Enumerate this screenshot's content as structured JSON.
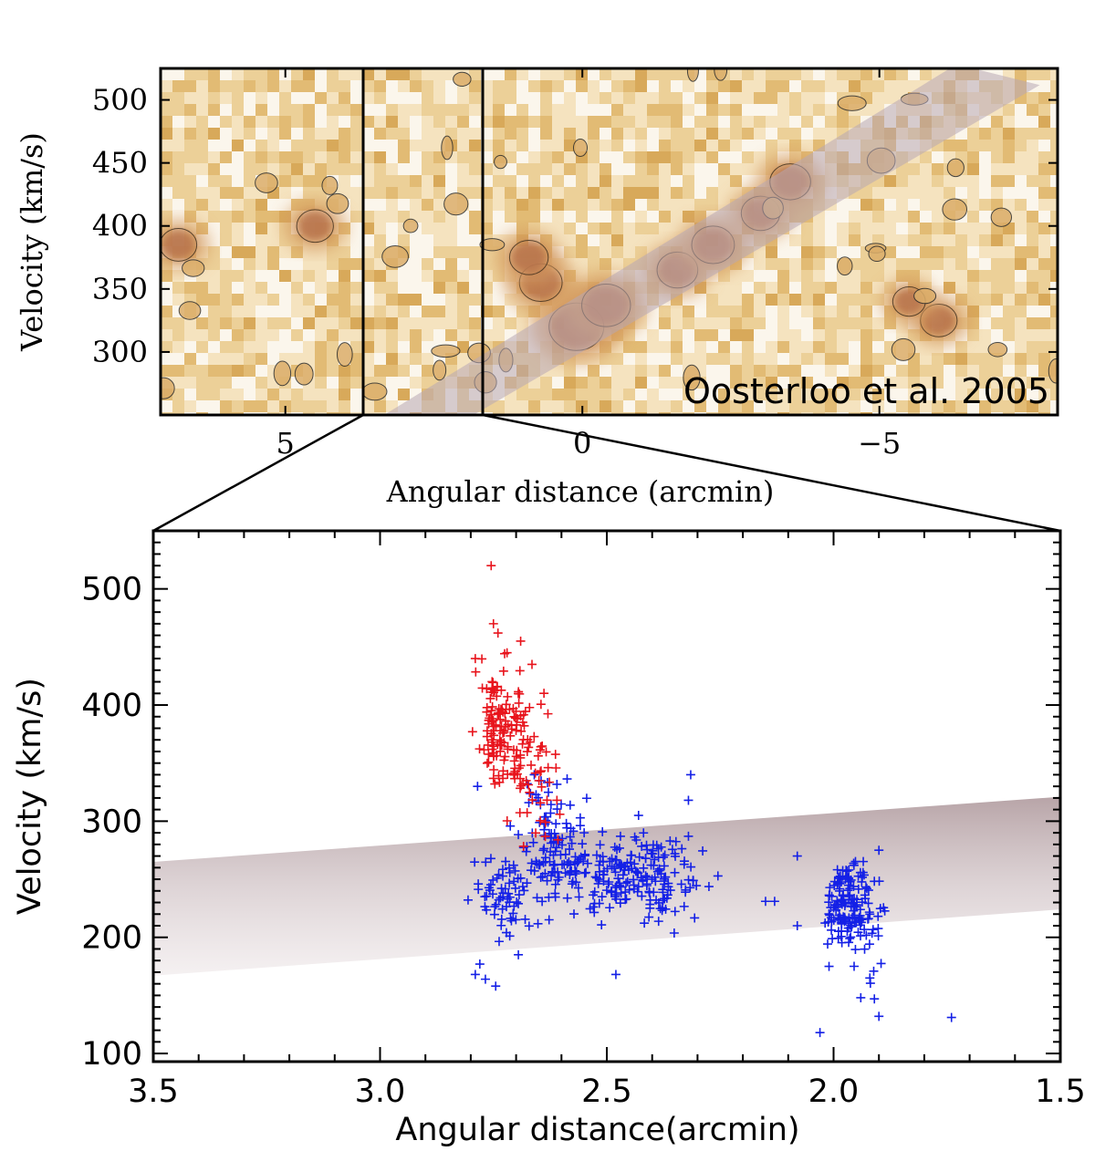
{
  "chart_data": [
    {
      "type": "heatmap",
      "panel": "top",
      "description_label": "Oosterloo et al. 2005",
      "xlabel": "Angular distance (arcmin)",
      "ylabel": "Velocity (km/s)",
      "xlim": [
        7.1,
        -8.0
      ],
      "ylim": [
        250,
        525
      ],
      "xticks": [
        {
          "v": 5,
          "label": "5"
        },
        {
          "v": 0,
          "label": "0"
        },
        {
          "v": -5,
          "label": "−5"
        }
      ],
      "yticks": [
        {
          "v": 500,
          "label": "500"
        },
        {
          "v": 450,
          "label": "450"
        },
        {
          "v": 400,
          "label": "400"
        },
        {
          "v": 350,
          "label": "350"
        },
        {
          "v": 300,
          "label": "300"
        }
      ],
      "zoom_window_x": [
        3.5,
        1.5
      ],
      "band": {
        "x_start": 3.5,
        "v_start": 245,
        "x_end": -7.0,
        "v_end": 520
      },
      "emission_peaks": [
        {
          "x": 0.1,
          "v": 320,
          "level": 1.0
        },
        {
          "x": -0.4,
          "v": 337,
          "level": 0.85
        },
        {
          "x": 0.7,
          "v": 355,
          "level": 0.7
        },
        {
          "x": 0.9,
          "v": 375,
          "level": 0.6
        },
        {
          "x": -1.6,
          "v": 365,
          "level": 0.65
        },
        {
          "x": -2.2,
          "v": 385,
          "level": 0.7
        },
        {
          "x": -3.0,
          "v": 410,
          "level": 0.6
        },
        {
          "x": -3.5,
          "v": 435,
          "level": 0.65
        },
        {
          "x": 6.8,
          "v": 385,
          "level": 0.55
        },
        {
          "x": 4.5,
          "v": 400,
          "level": 0.55
        },
        {
          "x": -6.0,
          "v": 325,
          "level": 0.55
        },
        {
          "x": -5.5,
          "v": 340,
          "level": 0.45
        }
      ]
    },
    {
      "type": "scatter",
      "panel": "bottom",
      "xlabel": "Angular distance(arcmin)",
      "ylabel": "Velocity (km/s)",
      "xlim": [
        3.5,
        1.5
      ],
      "ylim": [
        93,
        550
      ],
      "xticks": [
        {
          "v": 3.5,
          "label": "3.5"
        },
        {
          "v": 3.0,
          "label": "3.0"
        },
        {
          "v": 2.5,
          "label": "2.5"
        },
        {
          "v": 2.0,
          "label": "2.0"
        },
        {
          "v": 1.5,
          "label": "1.5"
        }
      ],
      "yticks": [
        {
          "v": 500,
          "label": "500"
        },
        {
          "v": 400,
          "label": "400"
        },
        {
          "v": 300,
          "label": "300"
        },
        {
          "v": 200,
          "label": "200"
        },
        {
          "v": 100,
          "label": "100"
        }
      ],
      "band": {
        "x_start": 3.5,
        "v_low_start": 167,
        "v_high_start": 265,
        "x_end": 1.5,
        "v_low_end": 224,
        "v_high_end": 321
      },
      "series": [
        {
          "name": "red",
          "color": "#e8141c",
          "clusters": [
            {
              "x": 2.74,
              "v": 390,
              "sx": 0.025,
              "sv": 25,
              "n": 90
            },
            {
              "x": 2.7,
              "v": 365,
              "sx": 0.03,
              "sv": 28,
              "n": 60
            },
            {
              "x": 2.66,
              "v": 345,
              "sx": 0.03,
              "sv": 25,
              "n": 25
            }
          ],
          "points": [
            [
              2.755,
              520
            ],
            [
              2.75,
              470
            ],
            [
              2.74,
              462
            ],
            [
              2.69,
              455
            ],
            [
              2.72,
              445
            ],
            [
              2.665,
              435
            ],
            [
              2.79,
              440
            ],
            [
              2.61,
              318
            ]
          ]
        },
        {
          "name": "blue",
          "color": "#1420e6",
          "clusters": [
            {
              "x": 2.64,
              "v": 300,
              "sx": 0.025,
              "sv": 22,
              "n": 45
            },
            {
              "x": 2.72,
              "v": 230,
              "sx": 0.035,
              "sv": 22,
              "n": 65
            },
            {
              "x": 2.6,
              "v": 262,
              "sx": 0.04,
              "sv": 17,
              "n": 80
            },
            {
              "x": 2.47,
              "v": 258,
              "sx": 0.045,
              "sv": 18,
              "n": 100
            },
            {
              "x": 2.38,
              "v": 248,
              "sx": 0.04,
              "sv": 20,
              "n": 80
            },
            {
              "x": 1.97,
              "v": 228,
              "sx": 0.03,
              "sv": 18,
              "n": 140
            },
            {
              "x": 1.93,
              "v": 195,
              "sx": 0.02,
              "sv": 18,
              "n": 15
            }
          ],
          "points": [
            [
              2.785,
              330
            ],
            [
              2.66,
              340
            ],
            [
              2.315,
              340
            ],
            [
              2.32,
              318
            ],
            [
              2.745,
              158
            ],
            [
              2.79,
              168
            ],
            [
              2.78,
              177
            ],
            [
              2.695,
              185
            ],
            [
              2.48,
              168
            ],
            [
              1.9,
              275
            ],
            [
              2.08,
              270
            ],
            [
              1.955,
              262
            ],
            [
              2.03,
              118
            ],
            [
              1.74,
              131
            ],
            [
              1.9,
              132
            ],
            [
              1.91,
              147
            ],
            [
              1.92,
              165
            ],
            [
              2.15,
              231
            ],
            [
              2.13,
              231
            ],
            [
              2.08,
              210
            ],
            [
              1.94,
              148
            ],
            [
              2.01,
              175
            ],
            [
              2.32,
              287
            ],
            [
              2.35,
              272
            ],
            [
              2.43,
              305
            ],
            [
              2.55,
              290
            ]
          ]
        }
      ]
    }
  ]
}
